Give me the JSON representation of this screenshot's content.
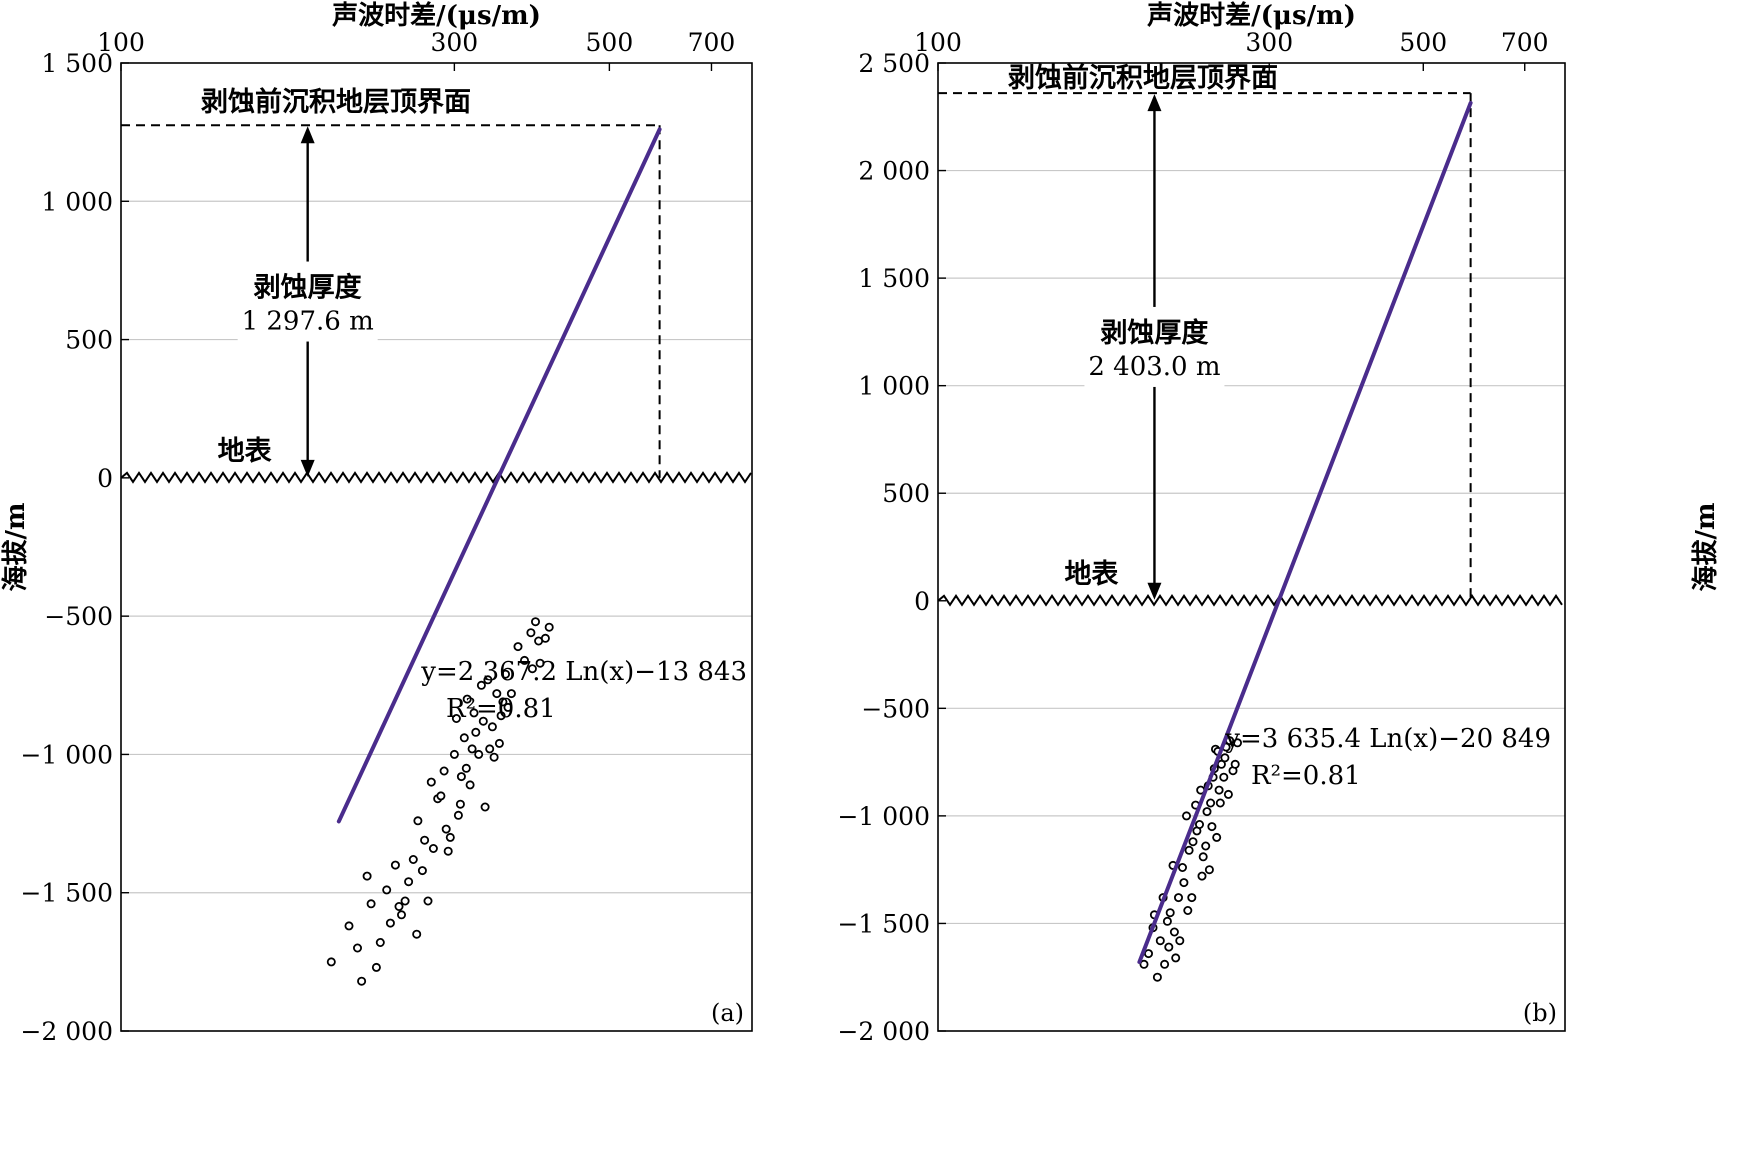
{
  "chart_data": [
    {
      "type": "scatter",
      "panel_label": "(a)",
      "title": "",
      "xlabel": "声波时差/(μs/m)",
      "ylabel": "海拔/m",
      "x_scale": "log",
      "xlim": [
        100,
        800
      ],
      "ylim": [
        -2000,
        1500
      ],
      "x_ticks": [
        100,
        300,
        500,
        700
      ],
      "x_tick_labels": [
        "100",
        "300",
        "500",
        "700"
      ],
      "y_ticks": [
        1500,
        1000,
        500,
        0,
        -500,
        -1000,
        -1500,
        -2000
      ],
      "y_tick_labels": [
        "1 500",
        "1 000",
        "500",
        "0",
        "−500",
        "−1 000",
        "−1 500",
        "−2 000"
      ],
      "grid": "horizontal",
      "fit_line": {
        "slope": 2367.2,
        "intercept": -13843,
        "x_range": [
          205,
          590
        ]
      },
      "equation_text": "y=2 367.2 Ln(x)−13 843",
      "r2_text": "R²=0.81",
      "top_boundary": {
        "label": "剥蚀前沉积地层顶界面",
        "elevation": 1275,
        "x_end": 590
      },
      "surface": {
        "label": "地表",
        "elevation": 0
      },
      "erosion": {
        "label": "剥蚀厚度",
        "value_text": "1 297.6 m",
        "arrow_x": 185
      },
      "points": [
        [
          200,
          -1750
        ],
        [
          212,
          -1620
        ],
        [
          218,
          -1700
        ],
        [
          221,
          -1820
        ],
        [
          228,
          -1540
        ],
        [
          225,
          -1440
        ],
        [
          232,
          -1770
        ],
        [
          235,
          -1680
        ],
        [
          240,
          -1490
        ],
        [
          243,
          -1610
        ],
        [
          247,
          -1400
        ],
        [
          250,
          -1550
        ],
        [
          252,
          -1580
        ],
        [
          255,
          -1530
        ],
        [
          258,
          -1460
        ],
        [
          262,
          -1380
        ],
        [
          265,
          -1650
        ],
        [
          266,
          -1240
        ],
        [
          270,
          -1420
        ],
        [
          272,
          -1310
        ],
        [
          275,
          -1530
        ],
        [
          278,
          -1100
        ],
        [
          280,
          -1340
        ],
        [
          284,
          -1160
        ],
        [
          287,
          -1150
        ],
        [
          290,
          -1060
        ],
        [
          292,
          -1270
        ],
        [
          294,
          -1350
        ],
        [
          296,
          -1300
        ],
        [
          300,
          -1000
        ],
        [
          302,
          -870
        ],
        [
          304,
          -1220
        ],
        [
          306,
          -1180
        ],
        [
          307,
          -1080
        ],
        [
          310,
          -940
        ],
        [
          312,
          -1050
        ],
        [
          313,
          -800
        ],
        [
          316,
          -1110
        ],
        [
          318,
          -980
        ],
        [
          320,
          -850
        ],
        [
          322,
          -920
        ],
        [
          325,
          -1000
        ],
        [
          328,
          -750
        ],
        [
          330,
          -880
        ],
        [
          332,
          -1190
        ],
        [
          335,
          -730
        ],
        [
          337,
          -980
        ],
        [
          340,
          -900
        ],
        [
          342,
          -1010
        ],
        [
          345,
          -780
        ],
        [
          348,
          -960
        ],
        [
          350,
          -860
        ],
        [
          352,
          -810
        ],
        [
          355,
          -710
        ],
        [
          358,
          -830
        ],
        [
          362,
          -780
        ],
        [
          370,
          -610
        ],
        [
          378,
          -660
        ],
        [
          386,
          -560
        ],
        [
          388,
          -690
        ],
        [
          392,
          -520
        ],
        [
          396,
          -590
        ],
        [
          398,
          -670
        ],
        [
          405,
          -580
        ],
        [
          410,
          -540
        ]
      ]
    },
    {
      "type": "scatter",
      "panel_label": "(b)",
      "title": "",
      "xlabel": "声波时差/(μs/m)",
      "ylabel": "海拔/m",
      "x_scale": "log",
      "xlim": [
        100,
        800
      ],
      "ylim": [
        -2000,
        2500
      ],
      "x_ticks": [
        100,
        300,
        500,
        700
      ],
      "x_tick_labels": [
        "100",
        "300",
        "500",
        "700"
      ],
      "y_ticks": [
        2500,
        2000,
        1500,
        1000,
        500,
        0,
        -500,
        -1000,
        -1500,
        -2000
      ],
      "y_tick_labels": [
        "2 500",
        "2 000",
        "1 500",
        "1 000",
        "500",
        "0",
        "−500",
        "−1 000",
        "−1 500",
        "−2 000"
      ],
      "grid": "horizontal",
      "fit_line": {
        "slope": 3635.4,
        "intercept": -20849,
        "x_range": [
          195,
          585
        ]
      },
      "equation_text": "y=3 635.4 Ln(x)−20 849",
      "r2_text": "R²=0.81",
      "top_boundary": {
        "label": "剥蚀前沉积地层顶界面",
        "elevation": 2360,
        "x_end": 585
      },
      "surface": {
        "label": "地表",
        "elevation": 0
      },
      "erosion": {
        "label": "剥蚀厚度",
        "value_text": "2 403.0 m",
        "arrow_x": 205
      },
      "points": [
        [
          198,
          -1690
        ],
        [
          201,
          -1640
        ],
        [
          204,
          -1520
        ],
        [
          205,
          -1460
        ],
        [
          207,
          -1750
        ],
        [
          209,
          -1580
        ],
        [
          211,
          -1380
        ],
        [
          212,
          -1690
        ],
        [
          214,
          -1490
        ],
        [
          215,
          -1610
        ],
        [
          216,
          -1450
        ],
        [
          218,
          -1230
        ],
        [
          219,
          -1540
        ],
        [
          220,
          -1660
        ],
        [
          222,
          -1380
        ],
        [
          223,
          -1580
        ],
        [
          225,
          -1240
        ],
        [
          226,
          -1310
        ],
        [
          228,
          -1000
        ],
        [
          229,
          -1440
        ],
        [
          230,
          -1160
        ],
        [
          232,
          -1380
        ],
        [
          233,
          -1120
        ],
        [
          235,
          -950
        ],
        [
          236,
          -1070
        ],
        [
          238,
          -1040
        ],
        [
          239,
          -880
        ],
        [
          240,
          -1280
        ],
        [
          241,
          -1190
        ],
        [
          243,
          -1140
        ],
        [
          244,
          -980
        ],
        [
          245,
          -860
        ],
        [
          246,
          -1250
        ],
        [
          247,
          -940
        ],
        [
          248,
          -1050
        ],
        [
          249,
          -820
        ],
        [
          250,
          -780
        ],
        [
          251,
          -690
        ],
        [
          252,
          -1100
        ],
        [
          253,
          -700
        ],
        [
          254,
          -880
        ],
        [
          255,
          -940
        ],
        [
          256,
          -760
        ],
        [
          258,
          -820
        ],
        [
          259,
          -730
        ],
        [
          260,
          -680
        ],
        [
          262,
          -900
        ],
        [
          263,
          -650
        ],
        [
          266,
          -790
        ],
        [
          268,
          -760
        ],
        [
          270,
          -660
        ]
      ]
    }
  ]
}
